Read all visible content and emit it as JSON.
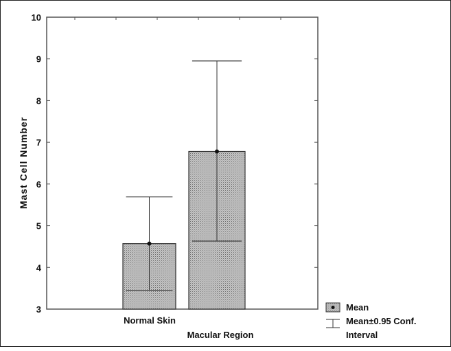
{
  "chart_data": {
    "type": "bar",
    "title": "",
    "xlabel": "",
    "ylabel": "Mast Cell Number",
    "categories": [
      "Normal Skin",
      "Macular Region"
    ],
    "series": [
      {
        "values": [
          4.57,
          6.78
        ],
        "ci_low": [
          3.45,
          4.63
        ],
        "ci_high": [
          5.69,
          8.95
        ]
      }
    ],
    "ylim": [
      3,
      10
    ],
    "yticks": [
      "3",
      "4",
      "5",
      "6",
      "7",
      "8",
      "9",
      "10"
    ],
    "grid": false,
    "legend": {
      "position": "bottom-right",
      "entries": [
        "Mean",
        "Mean±0.95 Conf. Interval"
      ]
    },
    "colors": {
      "bar_fill": "#b8b8b8",
      "bar_stroke": "#333333",
      "axis": "#555555"
    }
  }
}
